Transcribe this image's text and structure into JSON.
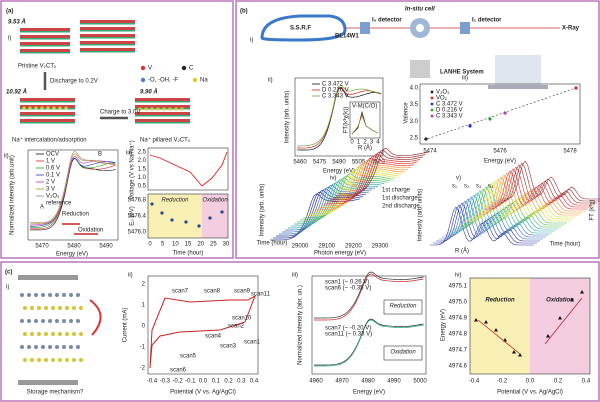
{
  "a": {
    "label": "(a)",
    "i": {
      "label": "i)",
      "d1": "9.53 Å",
      "pristine": "Pristine V₂CTₓ",
      "discharge": "Discharge to 0.2V",
      "d2": "10.92 Å",
      "charge": "Charge to 3.0V",
      "d3": "9.90 Å",
      "intercalation": "Na⁺ intercalation/adsorption",
      "pillared": "Na⁺ pillared V₂CTₓ",
      "legend": [
        "V",
        "C",
        "-O, -OH, -F",
        "Na"
      ]
    },
    "ii": {
      "label": "ii)",
      "ylabel": "Normalized intensity (arb.unit)",
      "xlabel": "Energy (eV)",
      "xticks": [
        "5470",
        "5480",
        "5490"
      ],
      "legend": [
        "OCV",
        "1 V",
        "0.6 V",
        "0.1 V",
        "2 V",
        "3 V",
        "V₂O₃"
      ],
      "reference": "reference",
      "reduction": "Reduction",
      "oxidation": "Oxidation",
      "peaks": [
        "A",
        "B"
      ]
    },
    "iii": {
      "label": "iii)",
      "ylabel_top": "Voltage (V vs Na/Na⁺)",
      "yticks_top": [
        "2.5",
        "2.0",
        "1.5",
        "1.0",
        "0.5"
      ],
      "ylabel_bottom": "E₀ (eV)",
      "yticks_bottom": [
        "5476.8",
        "5476.4",
        "5476.0"
      ],
      "xlabel": "Time (hour)",
      "xticks": [
        "0",
        "5",
        "10",
        "15",
        "20",
        "25",
        "30"
      ],
      "reduction": "Reduction",
      "oxidation": "Oxidation"
    }
  },
  "b": {
    "label": "(b)",
    "i": {
      "label": "i)",
      "beamline": "BL14W1",
      "cell": "In-situ cell",
      "i0": "I₀ detector",
      "i1": "I₁ detector",
      "xray": "X-Ray",
      "ssrf": "S.S.R.F",
      "system": "LANHE System"
    },
    "ii": {
      "label": "ii)",
      "ylabel": "Intensity (arb. units)",
      "xlabel": "Energy (eV)",
      "xticks": [
        "5460",
        "5475",
        "5490",
        "5505",
        "5520"
      ],
      "legend": [
        "C 3.472 V",
        "D 0.216 V",
        "C 3.343 V"
      ],
      "inset": {
        "title": "V-M(C/O)",
        "ylabel": "FT(k³χ(k))",
        "xlabel": "R (Å)",
        "xticks": [
          "0",
          "1",
          "2",
          "3",
          "4"
        ]
      }
    },
    "iii": {
      "label": "iii)",
      "ylabel": "Valence",
      "yticks": [
        "4.0",
        "3.5",
        "3.0",
        "2.5"
      ],
      "xlabel": "Energy (eV)",
      "xticks": [
        "5474",
        "5476",
        "5478"
      ],
      "legend": [
        "V₂O₃",
        "VO₂",
        "C 3.472 V",
        "D 0.216 V",
        "C 3.343 V"
      ]
    },
    "iv": {
      "label": "iv)",
      "zlabel": "Intensity (arb. units)",
      "xlabel": "Photon energy (eV)",
      "xticks": [
        "29000",
        "29100",
        "29200",
        "29300"
      ],
      "ylabel": "Time (hour)",
      "stages": [
        "1st charge",
        "1st discharge",
        "2nd discharge"
      ]
    },
    "v": {
      "label": "v)",
      "zlabel": "Intensity (arb. units)",
      "xlabel": "R (Å)",
      "ylabel": "Time (hour)",
      "right": "FT (k³χ)",
      "peaks": [
        "s₁",
        "s₂",
        "s₃",
        "s₄"
      ]
    }
  },
  "c": {
    "label": "(c)",
    "i": {
      "label": "i)",
      "question": "Storage mechanism?"
    },
    "ii": {
      "label": "ii)",
      "ylabel": "Current (mA)",
      "yticks": [
        "2",
        "1",
        "0",
        "-1",
        "-2"
      ],
      "xlabel": "Potential (V vs. Ag/AgCl)",
      "xticks": [
        "-0.4",
        "-0.3",
        "-0.2",
        "-0.1",
        "0.0",
        "0.1",
        "0.2",
        "0.3",
        "0.4"
      ],
      "scans": [
        "scan1",
        "scan2",
        "scan3",
        "scan4",
        "scan5",
        "scan6",
        "scan7",
        "scan8",
        "scan9",
        "scan10",
        "scan11"
      ]
    },
    "iii": {
      "label": "iii)",
      "ylabel": "Normalized intensity (abr. un.)",
      "xlabel": "Energy (eV)",
      "xticks": [
        "4960",
        "4970",
        "4980",
        "4990",
        "5000"
      ],
      "top_legend": [
        "scan1 (~ 0.26 V)",
        "scan6 (~ -0.35 V)"
      ],
      "bottom_legend": [
        "scan7 (~ -0.20 V)",
        "scan11 (~ 0.33 V)"
      ],
      "reduction": "Reduction",
      "oxidation": "Oxidation"
    },
    "iv": {
      "label": "iv)",
      "ylabel": "Energy (eV)",
      "yticks": [
        "4975.1",
        "4975.0",
        "4974.9",
        "4974.8",
        "4974.7",
        "4974.6"
      ],
      "xlabel": "Potential (V vs. Ag/AgCl)",
      "xticks": [
        "-0.4",
        "-0.2",
        "0.0",
        "0.2",
        "0.4"
      ],
      "reduction": "Reduction",
      "oxidation": "Oxidation"
    }
  }
}
